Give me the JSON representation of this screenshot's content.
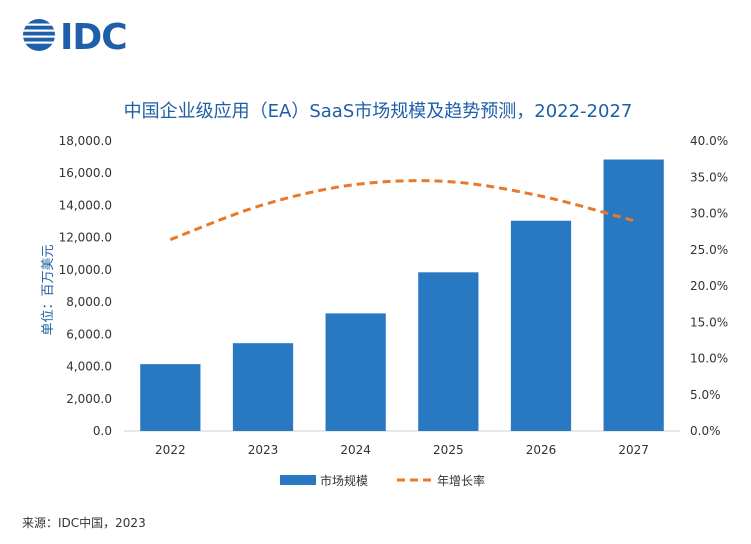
{
  "logo": {
    "text": "IDC",
    "color": "#1f5ea8"
  },
  "chart_data": {
    "type": "bar",
    "title": "中国企业级应用（EA）SaaS市场规模及趋势预测，2022-2027",
    "ylabel": "单位：百万美元",
    "categories": [
      "2022",
      "2023",
      "2024",
      "2025",
      "2026",
      "2027"
    ],
    "series": [
      {
        "name": "市场规模",
        "type": "bar",
        "axis": "left",
        "color": "#2878c2",
        "values": [
          4150,
          5450,
          7300,
          9850,
          13050,
          16850
        ]
      },
      {
        "name": "年增长率",
        "type": "line",
        "style": "dashed",
        "axis": "right",
        "color": "#e8782a",
        "values": [
          26.4,
          31.2,
          34.0,
          34.4,
          32.4,
          29.0
        ]
      }
    ],
    "ylim": [
      0,
      18000
    ],
    "y2lim": [
      0,
      40
    ],
    "yticks": [
      "0.0",
      "2,000.0",
      "4,000.0",
      "6,000.0",
      "8,000.0",
      "10,000.0",
      "12,000.0",
      "14,000.0",
      "16,000.0",
      "18,000.0"
    ],
    "y2ticks": [
      "0.0%",
      "5.0%",
      "10.0%",
      "15.0%",
      "20.0%",
      "25.0%",
      "30.0%",
      "35.0%",
      "40.0%"
    ],
    "grid": false,
    "legend": "bottom"
  },
  "source": "来源：IDC中国，2023"
}
